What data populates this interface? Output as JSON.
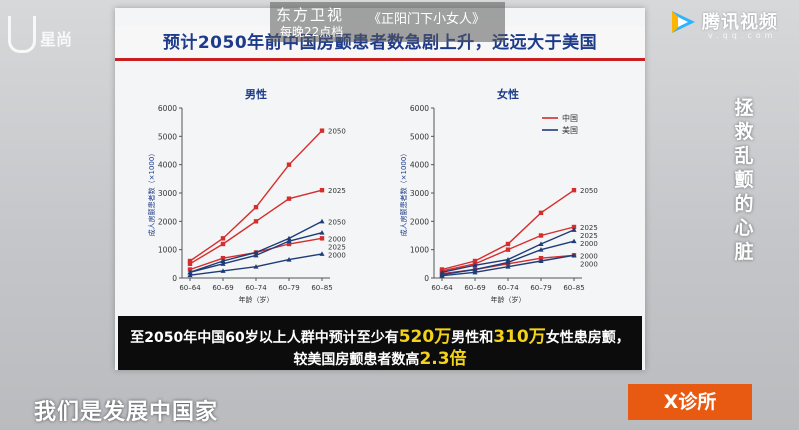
{
  "broadcast": {
    "channel_name": "东方卫视",
    "air_time": "每晚22点档",
    "show_title": "《正阳门下小女人》",
    "platform": "腾讯视频",
    "platform_sub": "v.qq.com",
    "studio_logo": "星尚",
    "program": "X诊所",
    "side_title": "拯救乱颤的心脏",
    "subtitle": "我们是发展中国家"
  },
  "slide": {
    "title": "预计2050年前中国房颤患者数急剧上升，远远大于美国",
    "caption_line1_a": "至2050年中国60岁以上人群中预计至少有",
    "caption_line1_num1": "520万",
    "caption_line1_b": "男性和",
    "caption_line1_num2": "310万",
    "caption_line1_c": "女性患房颤，",
    "caption_line2_a": "较美国房颤患者数高",
    "caption_line2_num": "2.3倍"
  },
  "colors": {
    "china": "#d62d2d",
    "usa": "#1f3c78",
    "title": "#1d3b8a",
    "orange": "#e85a12"
  },
  "chart_data": [
    {
      "type": "line",
      "title": "男性",
      "ylabel": "成人房颤患者数（×1000）",
      "xlabel": "年龄（岁）",
      "categories": [
        "60–64",
        "60–69",
        "60–74",
        "60–79",
        "60–85"
      ],
      "ylim": [
        0,
        6000
      ],
      "yticks": [
        0,
        1000,
        2000,
        3000,
        4000,
        5000,
        6000
      ],
      "series": [
        {
          "name": "2050",
          "group": "china",
          "values": [
            600,
            1400,
            2500,
            4000,
            5200
          ]
        },
        {
          "name": "2025",
          "group": "china",
          "values": [
            500,
            1200,
            2000,
            2800,
            3100
          ]
        },
        {
          "name": "2000",
          "group": "china",
          "values": [
            300,
            700,
            900,
            1200,
            1400
          ]
        },
        {
          "name": "2050",
          "group": "usa",
          "values": [
            200,
            600,
            900,
            1400,
            2000
          ]
        },
        {
          "name": "2025",
          "group": "usa",
          "values": [
            200,
            500,
            800,
            1300,
            1600
          ]
        },
        {
          "name": "2000",
          "group": "usa",
          "values": [
            100,
            250,
            400,
            650,
            850
          ]
        }
      ]
    },
    {
      "type": "line",
      "title": "女性",
      "ylabel": "成人房颤患者数（×1000）",
      "xlabel": "年龄（岁）",
      "categories": [
        "60–64",
        "60–69",
        "60–74",
        "60–79",
        "60–85"
      ],
      "ylim": [
        0,
        6000
      ],
      "yticks": [
        0,
        1000,
        2000,
        3000,
        4000,
        5000,
        6000
      ],
      "legend": [
        {
          "label": "中国",
          "group": "china"
        },
        {
          "label": "美国",
          "group": "usa"
        }
      ],
      "series": [
        {
          "name": "2050",
          "group": "china",
          "values": [
            300,
            600,
            1200,
            2300,
            3100
          ]
        },
        {
          "name": "2025",
          "group": "china",
          "values": [
            250,
            500,
            1000,
            1500,
            1800
          ]
        },
        {
          "name": "2000",
          "group": "china",
          "values": [
            150,
            300,
            500,
            700,
            800
          ]
        },
        {
          "name": "2025",
          "group": "usa",
          "values": [
            200,
            450,
            650,
            1200,
            1700
          ]
        },
        {
          "name": "2000",
          "group": "usa",
          "values": [
            120,
            300,
            550,
            1000,
            1300
          ]
        },
        {
          "name": "2000",
          "group": "usa",
          "values": [
            80,
            200,
            400,
            600,
            800
          ]
        }
      ]
    }
  ]
}
